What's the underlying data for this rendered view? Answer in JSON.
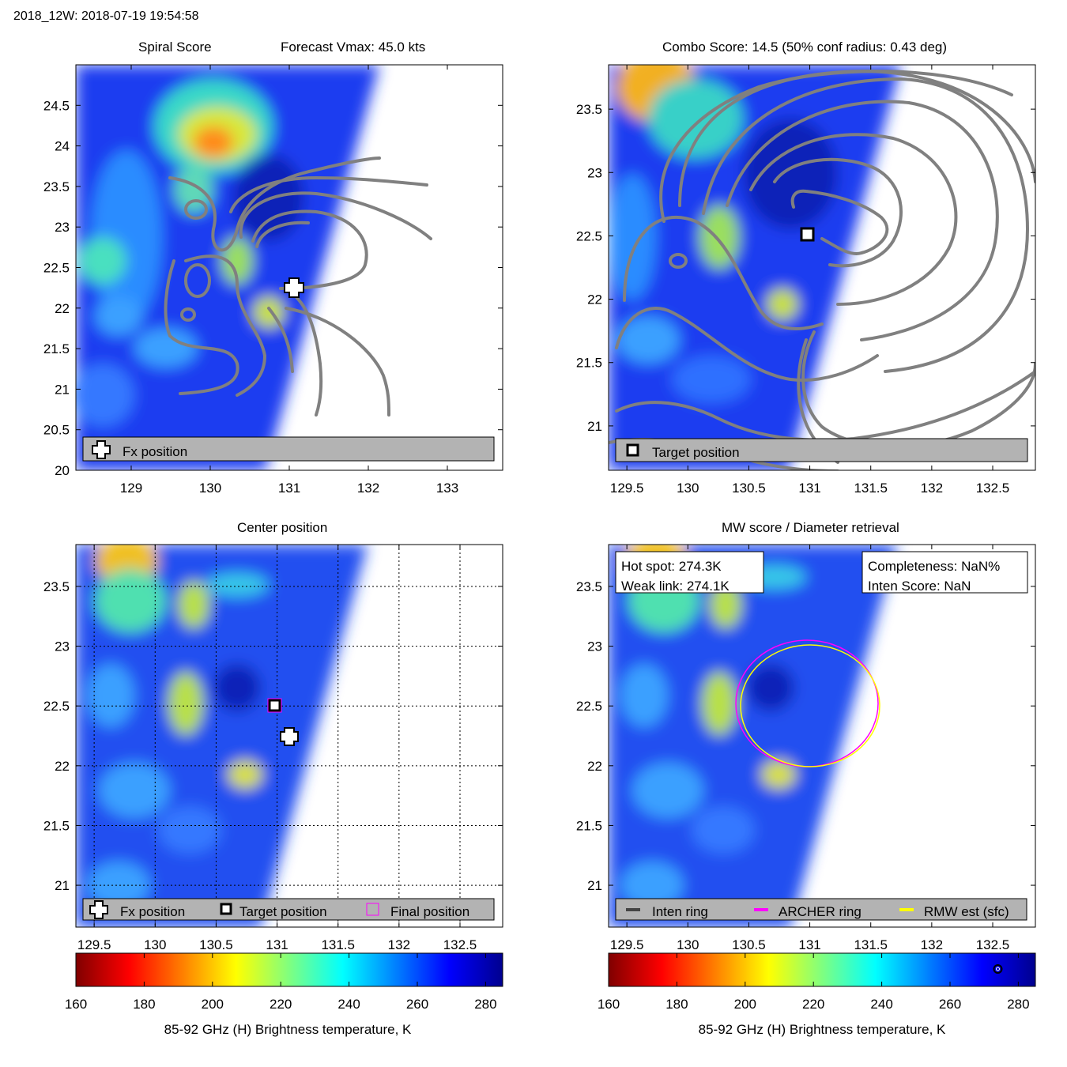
{
  "header": {
    "title": "2018_12W: 2018-07-19 19:54:58"
  },
  "panels": {
    "spiral": {
      "title": "Spiral Score",
      "subtitle": "Forecast Vmax: 45.0 kts",
      "legend": [
        "Fx position"
      ],
      "xticks": [
        "129",
        "130",
        "131",
        "132",
        "133"
      ],
      "yticks": [
        "24.5",
        "24",
        "23.5",
        "23",
        "22.5",
        "22",
        "21.5",
        "21",
        "20.5",
        "20"
      ]
    },
    "combo": {
      "title": "Combo Score: 14.5  (50% conf radius: 0.43 deg)",
      "legend": [
        "Target position"
      ],
      "xticks": [
        "129.5",
        "130",
        "130.5",
        "131",
        "131.5",
        "132",
        "132.5"
      ],
      "yticks": [
        "23.5",
        "23",
        "22.5",
        "22",
        "21.5",
        "21"
      ]
    },
    "center": {
      "title": "Center position",
      "legend": [
        "Fx position",
        "Target position",
        "Final position"
      ],
      "xticks": [
        "129.5",
        "130",
        "130.5",
        "131",
        "131.5",
        "132",
        "132.5"
      ],
      "yticks": [
        "23.5",
        "23",
        "22.5",
        "22",
        "21.5",
        "21"
      ]
    },
    "mw": {
      "title": "MW score / Diameter retrieval",
      "hotspot": "Hot spot: 274.3K",
      "weaklink": "Weak link: 274.1K",
      "completeness": "Completeness: NaN%",
      "intenscore": "Inten Score: NaN",
      "legend": [
        "Inten ring",
        "ARCHER ring",
        "RMW est (sfc)"
      ],
      "xticks": [
        "129.5",
        "130",
        "130.5",
        "131",
        "131.5",
        "132",
        "132.5"
      ],
      "yticks": [
        "23.5",
        "23",
        "22.5",
        "22",
        "21.5",
        "21"
      ]
    }
  },
  "colorbar": {
    "ticks": [
      "160",
      "180",
      "200",
      "220",
      "240",
      "260",
      "280"
    ],
    "label": "85-92 GHz (H) Brightness temperature, K"
  },
  "colors": {
    "inten_ring": "#444444",
    "archer_ring": "#ff00ff",
    "rmw_ring": "#ffff00",
    "contour": "#808080",
    "legend_bg": "#b3b3b3"
  },
  "chart_data": [
    {
      "type": "heatmap",
      "title": "Spiral Score",
      "subtitle": "Forecast Vmax: 45.0 kts",
      "xlim": [
        128.3,
        133.7
      ],
      "ylim": [
        20,
        25
      ],
      "markers": [
        {
          "label": "Fx position",
          "lon": 131.1,
          "lat": 22.25
        }
      ]
    },
    {
      "type": "heatmap",
      "title": "Combo Score: 14.5  (50% conf radius: 0.43 deg)",
      "xlim": [
        129.35,
        132.85
      ],
      "ylim": [
        20.65,
        23.85
      ],
      "markers": [
        {
          "label": "Target position",
          "lon": 131.0,
          "lat": 22.5
        }
      ]
    },
    {
      "type": "heatmap",
      "title": "Center position",
      "xlim": [
        129.35,
        132.85
      ],
      "ylim": [
        20.65,
        23.85
      ],
      "markers": [
        {
          "label": "Fx position",
          "lon": 131.13,
          "lat": 22.25
        },
        {
          "label": "Target position",
          "lon": 131.0,
          "lat": 22.5
        },
        {
          "label": "Final position",
          "lon": 131.0,
          "lat": 22.5
        }
      ]
    },
    {
      "type": "heatmap",
      "title": "MW score / Diameter retrieval",
      "xlim": [
        129.35,
        132.85
      ],
      "ylim": [
        20.65,
        23.85
      ],
      "hot_spot_K": 274.3,
      "weak_link_K": 274.1,
      "completeness": "NaN%",
      "inten_score": "NaN",
      "rings": [
        {
          "label": "ARCHER ring",
          "lon": 131.0,
          "lat": 22.5,
          "radius_deg": 0.59
        },
        {
          "label": "RMW est (sfc)",
          "lon": 131.0,
          "lat": 22.5,
          "radius_deg": 0.55
        }
      ],
      "colorbar_marker_K": 274
    }
  ]
}
